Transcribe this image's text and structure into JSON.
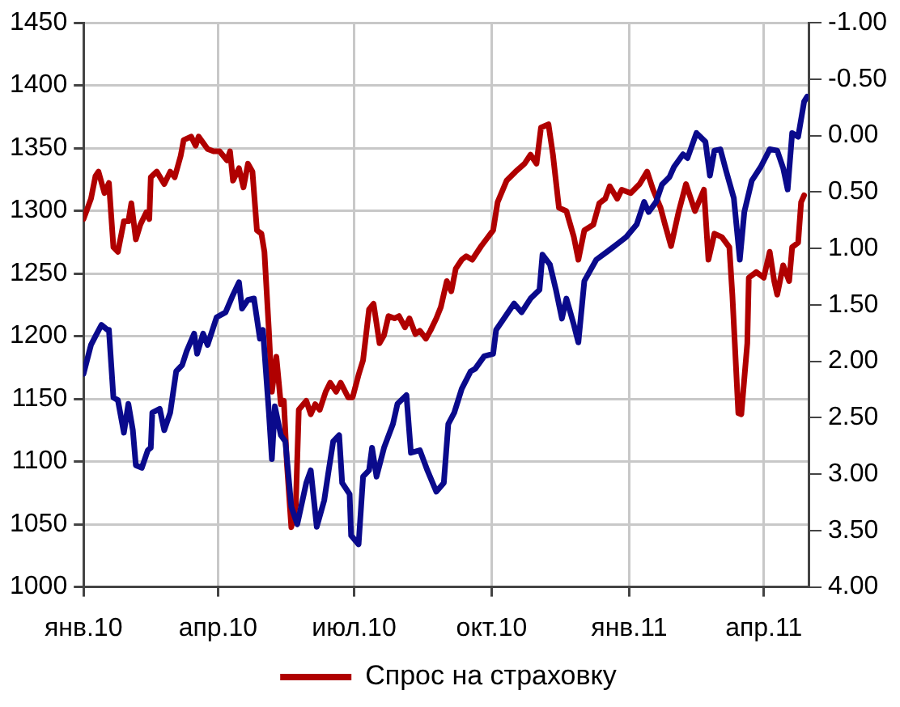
{
  "chart_data": {
    "type": "line",
    "xlim": [
      "2010-01-01",
      "2011-05-01"
    ],
    "xticks": [
      {
        "value": "2010-01-01",
        "label": "янв.10"
      },
      {
        "value": "2010-04-01",
        "label": "апр.10"
      },
      {
        "value": "2010-07-01",
        "label": "июл.10"
      },
      {
        "value": "2010-10-01",
        "label": "окт.10"
      },
      {
        "value": "2011-01-01",
        "label": "янв.11"
      },
      {
        "value": "2011-04-01",
        "label": "апр.11"
      }
    ],
    "ylim": [
      1000,
      1450
    ],
    "yticks": [
      1000,
      1050,
      1100,
      1150,
      1200,
      1250,
      1300,
      1350,
      1400,
      1450
    ],
    "y2lim": [
      4,
      -1
    ],
    "y2ticks": [
      {
        "value": -1,
        "label": "-1.00"
      },
      {
        "value": -0.5,
        "label": "-0.50"
      },
      {
        "value": 0,
        "label": "0.00"
      },
      {
        "value": 0.5,
        "label": "0.50"
      },
      {
        "value": 1,
        "label": "1.00"
      },
      {
        "value": 1.5,
        "label": "1.50"
      },
      {
        "value": 2,
        "label": "2.00"
      },
      {
        "value": 2.5,
        "label": "2.50"
      },
      {
        "value": 3,
        "label": "3.00"
      },
      {
        "value": 3.5,
        "label": "3.50"
      },
      {
        "value": 4,
        "label": "4.00"
      }
    ],
    "grid": true,
    "legend": "bottom",
    "marker": "none",
    "line_style": "solid",
    "series": [
      {
        "color": "#0a0a8c",
        "x": [
          "2010-01-01",
          "2010-01-06",
          "2010-01-09",
          "2010-01-13",
          "2010-01-17",
          "2010-01-18",
          "2010-01-21",
          "2010-01-24",
          "2010-01-28",
          "2010-01-31",
          "2010-02-03",
          "2010-02-05",
          "2010-02-09",
          "2010-02-13",
          "2010-02-15",
          "2010-02-16",
          "2010-02-21",
          "2010-02-24",
          "2010-02-28",
          "2010-03-04",
          "2010-03-08",
          "2010-03-11",
          "2010-03-16",
          "2010-03-18",
          "2010-03-22",
          "2010-03-25",
          "2010-03-31",
          "2010-04-06",
          "2010-04-11",
          "2010-04-15",
          "2010-04-17",
          "2010-04-21",
          "2010-04-25",
          "2010-04-29",
          "2010-05-01",
          "2010-05-05",
          "2010-05-07",
          "2010-05-09",
          "2010-05-13",
          "2010-05-16",
          "2010-05-20",
          "2010-05-24",
          "2010-05-30",
          "2010-06-02",
          "2010-06-06",
          "2010-06-11",
          "2010-06-14",
          "2010-06-17",
          "2010-06-21",
          "2010-06-23",
          "2010-06-28",
          "2010-06-29",
          "2010-07-04",
          "2010-07-07",
          "2010-07-11",
          "2010-07-13",
          "2010-07-16",
          "2010-07-21",
          "2010-07-27",
          "2010-07-30",
          "2010-08-05",
          "2010-08-08",
          "2010-08-14",
          "2010-08-19",
          "2010-08-25",
          "2010-08-30",
          "2010-09-02",
          "2010-09-06",
          "2010-09-11",
          "2010-09-17",
          "2010-09-20",
          "2010-09-26",
          "2010-10-02",
          "2010-10-04",
          "2010-10-08",
          "2010-10-16",
          "2010-10-21",
          "2010-10-27",
          "2010-11-02",
          "2010-11-04",
          "2010-11-09",
          "2010-11-13",
          "2010-11-17",
          "2010-11-20",
          "2010-11-25",
          "2010-11-28",
          "2010-12-02",
          "2010-12-10",
          "2010-12-18",
          "2010-12-30",
          "2011-01-06",
          "2011-01-11",
          "2011-01-14",
          "2011-01-19",
          "2011-01-23",
          "2011-01-28",
          "2011-01-31",
          "2011-02-06",
          "2011-02-09",
          "2011-02-15",
          "2011-02-21",
          "2011-02-24",
          "2011-02-27",
          "2011-03-03",
          "2011-03-07",
          "2011-03-12",
          "2011-03-16",
          "2011-03-19",
          "2011-03-24",
          "2011-03-30",
          "2011-04-05",
          "2011-04-10",
          "2011-04-14",
          "2011-04-17",
          "2011-04-20",
          "2011-04-24",
          "2011-04-28",
          "2011-04-30"
        ],
        "values": [
          1170,
          1193,
          1200,
          1209,
          1205,
          1205,
          1151,
          1149,
          1123,
          1146,
          1125,
          1097,
          1095,
          1109,
          1111,
          1139,
          1142,
          1125,
          1139,
          1172,
          1177,
          1188,
          1202,
          1186,
          1202,
          1193,
          1215,
          1219,
          1233,
          1243,
          1222,
          1229,
          1230,
          1198,
          1205,
          1139,
          1102,
          1144,
          1121,
          1116,
          1064,
          1050,
          1083,
          1093,
          1048,
          1069,
          1093,
          1116,
          1121,
          1083,
          1074,
          1041,
          1034,
          1088,
          1093,
          1111,
          1088,
          1111,
          1130,
          1146,
          1153,
          1107,
          1109,
          1093,
          1076,
          1083,
          1130,
          1139,
          1158,
          1172,
          1174,
          1184,
          1186,
          1205,
          1212,
          1226,
          1219,
          1230,
          1237,
          1265,
          1257,
          1237,
          1214,
          1230,
          1209,
          1195,
          1244,
          1261,
          1268,
          1279,
          1289,
          1307,
          1299,
          1307,
          1321,
          1327,
          1335,
          1345,
          1342,
          1362,
          1355,
          1328,
          1348,
          1349,
          1331,
          1310,
          1261,
          1299,
          1324,
          1335,
          1349,
          1348,
          1334,
          1317,
          1362,
          1359,
          1387,
          1391
        ]
      },
      {
        "name": "Спрос на страховку",
        "color": "#b00000",
        "axis": "y2",
        "x": [
          "2010-01-01",
          "2010-01-06",
          "2010-01-09",
          "2010-01-11",
          "2010-01-15",
          "2010-01-18",
          "2010-01-21",
          "2010-01-24",
          "2010-01-28",
          "2010-01-31",
          "2010-02-02",
          "2010-02-05",
          "2010-02-08",
          "2010-02-12",
          "2010-02-14",
          "2010-02-15",
          "2010-02-19",
          "2010-02-24",
          "2010-02-28",
          "2010-03-03",
          "2010-03-07",
          "2010-03-09",
          "2010-03-14",
          "2010-03-17",
          "2010-03-19",
          "2010-03-25",
          "2010-03-29",
          "2010-04-02",
          "2010-04-07",
          "2010-04-09",
          "2010-04-11",
          "2010-04-15",
          "2010-04-18",
          "2010-04-21",
          "2010-04-24",
          "2010-04-27",
          "2010-04-30",
          "2010-05-02",
          "2010-05-05",
          "2010-05-07",
          "2010-05-10",
          "2010-05-13",
          "2010-05-15",
          "2010-05-17",
          "2010-05-20",
          "2010-05-23",
          "2010-05-25",
          "2010-05-30",
          "2010-06-02",
          "2010-06-05",
          "2010-06-08",
          "2010-06-12",
          "2010-06-15",
          "2010-06-19",
          "2010-06-22",
          "2010-06-27",
          "2010-06-30",
          "2010-07-04",
          "2010-07-07",
          "2010-07-11",
          "2010-07-14",
          "2010-07-18",
          "2010-07-21",
          "2010-07-24",
          "2010-07-28",
          "2010-07-31",
          "2010-08-04",
          "2010-08-07",
          "2010-08-11",
          "2010-08-14",
          "2010-08-18",
          "2010-08-21",
          "2010-08-25",
          "2010-08-28",
          "2010-09-01",
          "2010-09-04",
          "2010-09-07",
          "2010-09-11",
          "2010-09-14",
          "2010-09-18",
          "2010-09-24",
          "2010-10-02",
          "2010-10-05",
          "2010-10-11",
          "2010-10-17",
          "2010-10-23",
          "2010-10-27",
          "2010-10-31",
          "2010-11-03",
          "2010-11-08",
          "2010-11-11",
          "2010-11-15",
          "2010-11-20",
          "2010-11-25",
          "2010-11-28",
          "2010-12-02",
          "2010-12-08",
          "2010-12-12",
          "2010-12-16",
          "2010-12-19",
          "2010-12-24",
          "2010-12-27",
          "2011-01-02",
          "2011-01-08",
          "2011-01-13",
          "2011-01-17",
          "2011-01-22",
          "2011-01-25",
          "2011-01-29",
          "2011-02-03",
          "2011-02-08",
          "2011-02-14",
          "2011-02-20",
          "2011-02-23",
          "2011-02-27",
          "2011-03-04",
          "2011-03-09",
          "2011-03-11",
          "2011-03-15",
          "2011-03-17",
          "2011-03-21",
          "2011-03-22",
          "2011-03-27",
          "2011-04-01",
          "2011-04-05",
          "2011-04-08",
          "2011-04-10",
          "2011-04-14",
          "2011-04-18",
          "2011-04-20",
          "2011-04-24",
          "2011-04-26",
          "2011-04-28"
        ],
        "values": [
          0.74,
          0.56,
          0.36,
          0.32,
          0.51,
          0.42,
          0.99,
          1.03,
          0.76,
          0.76,
          0.6,
          0.92,
          0.79,
          0.68,
          0.74,
          0.37,
          0.32,
          0.43,
          0.32,
          0.37,
          0.18,
          0.04,
          0.01,
          0.09,
          0.01,
          0.12,
          0.14,
          0.14,
          0.22,
          0.14,
          0.4,
          0.29,
          0.46,
          0.25,
          0.32,
          0.84,
          0.87,
          1.03,
          1.73,
          2.27,
          1.96,
          2.38,
          2.35,
          2.9,
          3.47,
          3.28,
          2.43,
          2.35,
          2.47,
          2.38,
          2.43,
          2.27,
          2.19,
          2.27,
          2.19,
          2.32,
          2.32,
          2.12,
          1.99,
          1.54,
          1.49,
          1.84,
          1.77,
          1.6,
          1.62,
          1.6,
          1.7,
          1.62,
          1.76,
          1.73,
          1.8,
          1.73,
          1.62,
          1.52,
          1.29,
          1.38,
          1.18,
          1.1,
          1.07,
          1.1,
          0.98,
          0.84,
          0.59,
          0.4,
          0.32,
          0.25,
          0.17,
          0.25,
          -0.07,
          -0.1,
          0.17,
          0.64,
          0.67,
          0.9,
          1.1,
          0.84,
          0.79,
          0.6,
          0.56,
          0.45,
          0.56,
          0.48,
          0.51,
          0.43,
          0.32,
          0.48,
          0.64,
          0.79,
          0.98,
          0.68,
          0.43,
          0.67,
          0.48,
          1.1,
          0.87,
          0.9,
          0.99,
          1.41,
          2.46,
          2.47,
          1.84,
          1.26,
          1.21,
          1.26,
          1.03,
          1.29,
          1.41,
          1.15,
          1.29,
          0.99,
          0.95,
          0.59,
          0.53
        ]
      }
    ]
  }
}
